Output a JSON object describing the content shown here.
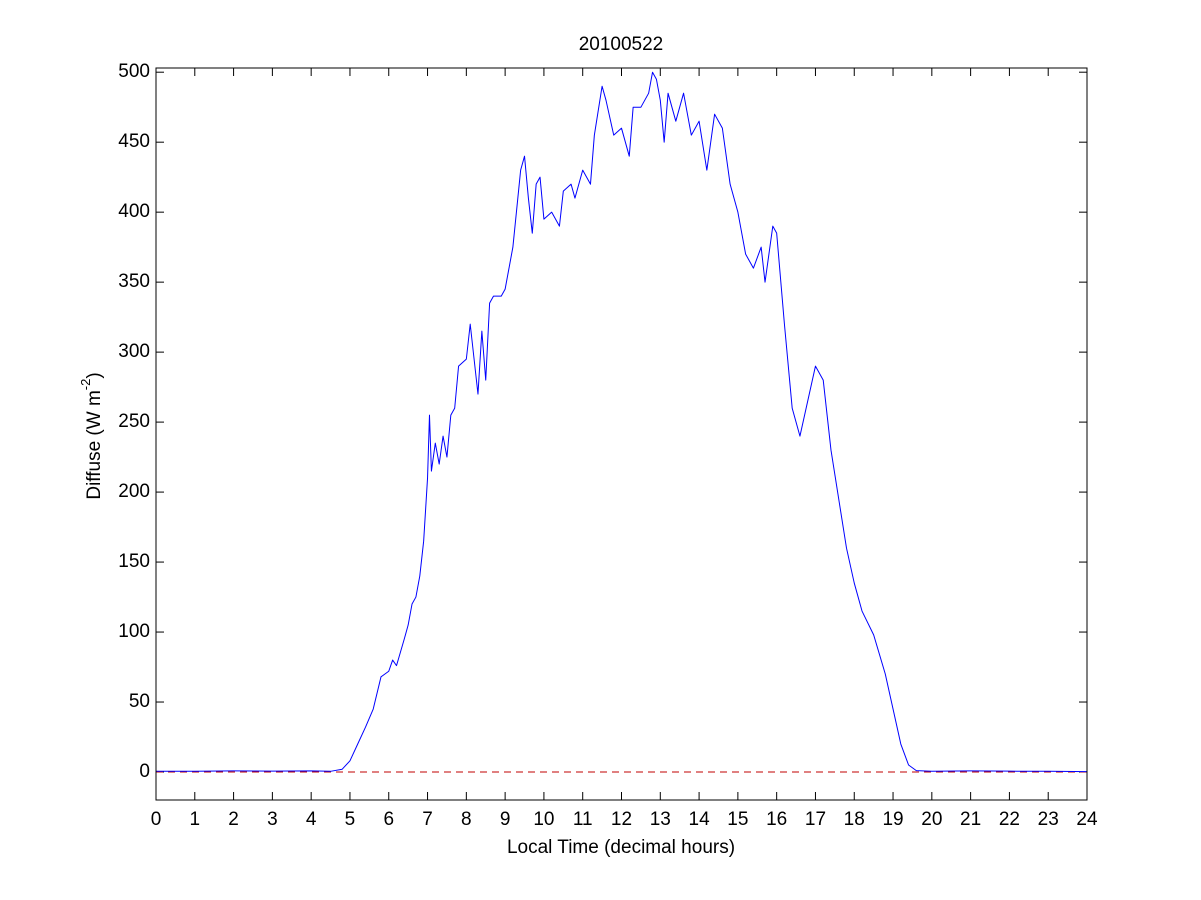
{
  "chart_data": {
    "type": "line",
    "title": "20100522",
    "x_label": "Local Time (decimal hours)",
    "y_label": {
      "text": "Diffuse (W m",
      "superscript": "-2",
      "end": ")"
    },
    "x": [
      0,
      1,
      2,
      3,
      4,
      4.5,
      4.8,
      5.0,
      5.2,
      5.4,
      5.6,
      5.8,
      6.0,
      6.1,
      6.2,
      6.4,
      6.5,
      6.6,
      6.7,
      6.8,
      6.9,
      7.0,
      7.05,
      7.1,
      7.2,
      7.3,
      7.4,
      7.5,
      7.6,
      7.7,
      7.8,
      8.0,
      8.1,
      8.2,
      8.3,
      8.4,
      8.5,
      8.6,
      8.7,
      8.9,
      9.0,
      9.2,
      9.4,
      9.5,
      9.6,
      9.7,
      9.8,
      9.9,
      10.0,
      10.2,
      10.4,
      10.5,
      10.7,
      10.8,
      11.0,
      11.2,
      11.3,
      11.5,
      11.6,
      11.8,
      12.0,
      12.2,
      12.3,
      12.5,
      12.7,
      12.8,
      12.9,
      13.0,
      13.1,
      13.2,
      13.4,
      13.6,
      13.8,
      14.0,
      14.2,
      14.4,
      14.6,
      14.8,
      15.0,
      15.2,
      15.4,
      15.6,
      15.7,
      15.9,
      16.0,
      16.2,
      16.4,
      16.6,
      16.8,
      17.0,
      17.2,
      17.4,
      17.6,
      17.8,
      18.0,
      18.2,
      18.5,
      18.8,
      19.0,
      19.2,
      19.4,
      19.6,
      20,
      21,
      22,
      23,
      24
    ],
    "series": [
      {
        "name": "Diffuse",
        "color": "#0000ff",
        "values": [
          0.5,
          0.5,
          0.8,
          0.6,
          0.8,
          0.5,
          2,
          8,
          20,
          32,
          45,
          68,
          72,
          80,
          76,
          95,
          105,
          120,
          125,
          140,
          165,
          210,
          255,
          215,
          235,
          220,
          240,
          225,
          255,
          260,
          290,
          295,
          320,
          295,
          270,
          315,
          280,
          335,
          340,
          340,
          345,
          375,
          430,
          440,
          410,
          385,
          420,
          425,
          395,
          400,
          390,
          415,
          420,
          410,
          430,
          420,
          455,
          490,
          480,
          455,
          460,
          440,
          475,
          475,
          485,
          500,
          495,
          480,
          450,
          485,
          465,
          485,
          455,
          465,
          430,
          470,
          460,
          420,
          400,
          370,
          360,
          375,
          350,
          390,
          385,
          320,
          260,
          240,
          265,
          290,
          280,
          230,
          195,
          160,
          135,
          115,
          98,
          70,
          45,
          20,
          5,
          1,
          0.5,
          0.8,
          0.6,
          0.5,
          0.3
        ]
      }
    ],
    "reference_line": {
      "y": 0,
      "color": "#c00000",
      "style": "dashed"
    },
    "xlim": [
      0,
      24
    ],
    "xticks": [
      0,
      1,
      2,
      3,
      4,
      5,
      6,
      7,
      8,
      9,
      10,
      11,
      12,
      13,
      14,
      15,
      16,
      17,
      18,
      19,
      20,
      21,
      22,
      23,
      24
    ],
    "ylim": [
      -20,
      503
    ],
    "yticks": [
      0,
      50,
      100,
      150,
      200,
      250,
      300,
      350,
      400,
      450,
      500
    ],
    "grid": false
  }
}
